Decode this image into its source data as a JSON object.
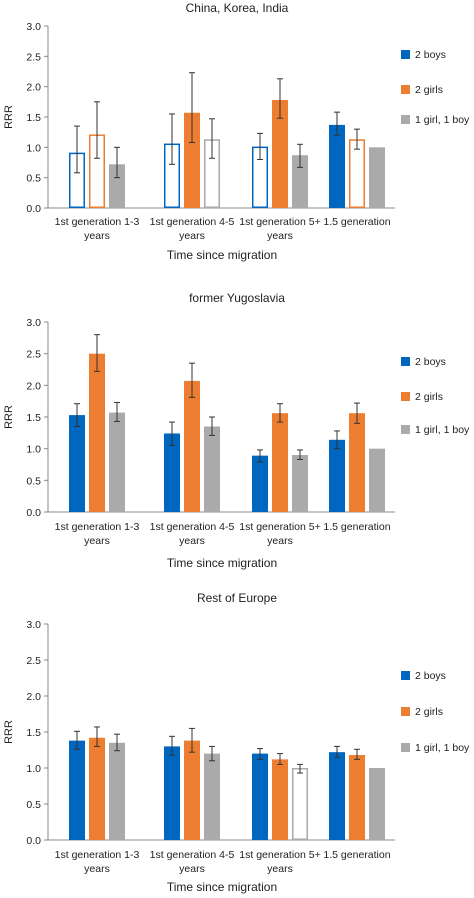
{
  "colors": {
    "boys": "#0066c0",
    "girls": "#ed7d31",
    "mixed": "#aaaaaa",
    "axis": "#888888",
    "error": "#333333"
  },
  "chart_data": [
    {
      "type": "bar",
      "title": "China, Korea, India",
      "ylabel": "RRR",
      "xlabel": "Time since migration",
      "ylim": [
        0,
        3.0
      ],
      "yticks": [
        "0.0",
        "0.5",
        "1.0",
        "1.5",
        "2.0",
        "2.5",
        "3.0"
      ],
      "categories": [
        [
          "1st generation 1-3",
          "years"
        ],
        [
          "1st generation 4-5",
          "years"
        ],
        [
          "1st generation 5+",
          "years"
        ],
        [
          "1.5 generation"
        ]
      ],
      "legend": [
        "2 boys",
        "2 girls",
        "1 girl, 1 boy"
      ],
      "series": [
        {
          "name": "2 boys",
          "values": [
            0.9,
            1.05,
            1.0,
            1.37
          ],
          "err_low": [
            0.58,
            0.72,
            0.8,
            1.2
          ],
          "err_high": [
            1.35,
            1.55,
            1.23,
            1.58
          ],
          "filled": [
            false,
            false,
            false,
            true
          ]
        },
        {
          "name": "2 girls",
          "values": [
            1.2,
            1.57,
            1.78,
            1.12
          ],
          "err_low": [
            0.82,
            1.08,
            1.48,
            0.97
          ],
          "err_high": [
            1.75,
            2.23,
            2.13,
            1.3
          ],
          "filled": [
            false,
            true,
            true,
            false
          ]
        },
        {
          "name": "1 girl, 1 boy",
          "values": [
            0.72,
            1.12,
            0.87,
            1.0
          ],
          "err_low": [
            0.5,
            0.82,
            0.67,
            null
          ],
          "err_high": [
            1.0,
            1.47,
            1.05,
            null
          ],
          "filled": [
            true,
            false,
            true,
            true
          ]
        }
      ]
    },
    {
      "type": "bar",
      "title": "former Yugoslavia",
      "ylabel": "RRR",
      "xlabel": "Time since migration",
      "ylim": [
        0,
        3.0
      ],
      "yticks": [
        "0.0",
        "0.5",
        "1.0",
        "1.5",
        "2.0",
        "2.5",
        "3.0"
      ],
      "categories": [
        [
          "1st generation 1-3",
          "years"
        ],
        [
          "1st generation 4-5",
          "years"
        ],
        [
          "1st generation 5+",
          "years"
        ],
        [
          "1.5 generation"
        ]
      ],
      "legend": [
        "2 boys",
        "2 girls",
        "1 girl, 1 boy"
      ],
      "series": [
        {
          "name": "2 boys",
          "values": [
            1.53,
            1.24,
            0.89,
            1.14
          ],
          "err_low": [
            1.35,
            1.05,
            0.79,
            1.0
          ],
          "err_high": [
            1.71,
            1.42,
            0.98,
            1.28
          ],
          "filled": [
            true,
            true,
            true,
            true
          ]
        },
        {
          "name": "2 girls",
          "values": [
            2.5,
            2.07,
            1.56,
            1.56
          ],
          "err_low": [
            2.22,
            1.81,
            1.42,
            1.4
          ],
          "err_high": [
            2.8,
            2.35,
            1.71,
            1.72
          ],
          "filled": [
            true,
            true,
            true,
            true
          ]
        },
        {
          "name": "1 girl, 1 boy",
          "values": [
            1.57,
            1.35,
            0.9,
            1.0
          ],
          "err_low": [
            1.43,
            1.21,
            0.83,
            null
          ],
          "err_high": [
            1.73,
            1.5,
            0.98,
            null
          ],
          "filled": [
            true,
            true,
            true,
            true
          ]
        }
      ]
    },
    {
      "type": "bar",
      "title": "Rest of Europe",
      "ylabel": "RRR",
      "xlabel": "Time since migration",
      "ylim": [
        0,
        3.0
      ],
      "yticks": [
        "0.0",
        "0.5",
        "1.0",
        "1.5",
        "2.0",
        "2.5",
        "3.0"
      ],
      "categories": [
        [
          "1st generation 1-3",
          "years"
        ],
        [
          "1st generation 4-5",
          "years"
        ],
        [
          "1st generation 5+",
          "years"
        ],
        [
          "1.5 generation"
        ]
      ],
      "legend": [
        "2 boys",
        "2 girls",
        "1 girl, 1 boy"
      ],
      "series": [
        {
          "name": "2 boys",
          "values": [
            1.38,
            1.3,
            1.2,
            1.22
          ],
          "err_low": [
            1.26,
            1.18,
            1.12,
            1.15
          ],
          "err_high": [
            1.51,
            1.44,
            1.27,
            1.3
          ],
          "filled": [
            true,
            true,
            true,
            true
          ]
        },
        {
          "name": "2 girls",
          "values": [
            1.42,
            1.38,
            1.12,
            1.18
          ],
          "err_low": [
            1.3,
            1.22,
            1.05,
            1.12
          ],
          "err_high": [
            1.57,
            1.55,
            1.2,
            1.26
          ],
          "filled": [
            true,
            true,
            true,
            true
          ]
        },
        {
          "name": "1 girl, 1 boy",
          "values": [
            1.35,
            1.2,
            0.99,
            1.0
          ],
          "err_low": [
            1.24,
            1.1,
            0.93,
            null
          ],
          "err_high": [
            1.47,
            1.3,
            1.05,
            null
          ],
          "filled": [
            true,
            true,
            false,
            true
          ]
        }
      ]
    }
  ]
}
